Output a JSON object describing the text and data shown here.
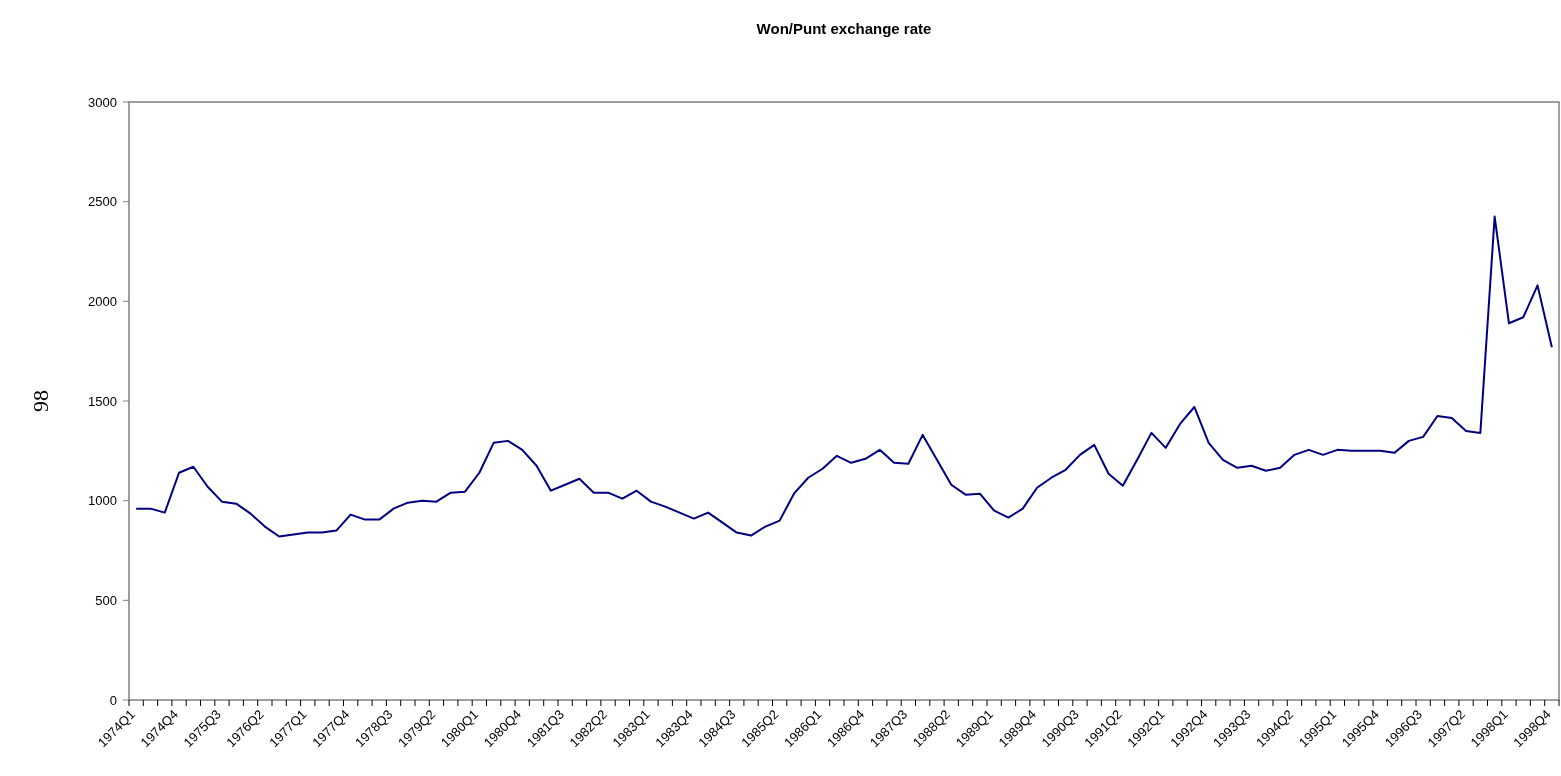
{
  "chart_data": {
    "type": "line",
    "title": "Won/Punt exchange rate",
    "ylabel": "98",
    "categories": [
      "1974Q1",
      null,
      null,
      "1974Q4",
      null,
      null,
      "1975Q3",
      null,
      null,
      "1976Q2",
      null,
      null,
      "1977Q1",
      null,
      null,
      "1977Q4",
      null,
      null,
      "1978Q3",
      null,
      null,
      "1979Q2",
      null,
      null,
      "1980Q1",
      null,
      null,
      "1980Q4",
      null,
      null,
      "1981Q3",
      null,
      null,
      "1982Q2",
      null,
      null,
      "1983Q1",
      null,
      null,
      "1983Q4",
      null,
      null,
      "1984Q3",
      null,
      null,
      "1985Q2",
      null,
      null,
      "1986Q1",
      null,
      null,
      "1986Q4",
      null,
      null,
      "1987Q3",
      null,
      null,
      "1988Q2",
      null,
      null,
      "1989Q1",
      null,
      null,
      "1989Q4",
      null,
      null,
      "1990Q3",
      null,
      null,
      "1991Q2",
      null,
      null,
      "1992Q1",
      null,
      null,
      "1992Q4",
      null,
      null,
      "1993Q3",
      null,
      null,
      "1994Q2",
      null,
      null,
      "1995Q1",
      null,
      null,
      "1995Q4",
      null,
      null,
      "1996Q3",
      null,
      null,
      "1997Q2",
      null,
      null,
      "1998Q1",
      null,
      null,
      "1998Q4"
    ],
    "series": [
      {
        "color": "#000080",
        "values": [
          960,
          960,
          940,
          1140,
          1170,
          1070,
          995,
          985,
          935,
          870,
          820,
          830,
          840,
          840,
          850,
          930,
          905,
          905,
          960,
          990,
          1000,
          995,
          1040,
          1045,
          1140,
          1290,
          1300,
          1255,
          1175,
          1050,
          1080,
          1110,
          1040,
          1040,
          1010,
          1050,
          995,
          970,
          940,
          910,
          940,
          890,
          840,
          825,
          870,
          900,
          1035,
          1115,
          1160,
          1225,
          1190,
          1210,
          1255,
          1190,
          1185,
          1330,
          1205,
          1080,
          1030,
          1035,
          950,
          915,
          960,
          1065,
          1115,
          1155,
          1230,
          1280,
          1135,
          1075,
          1205,
          1340,
          1265,
          1385,
          1470,
          1290,
          1205,
          1165,
          1175,
          1150,
          1165,
          1230,
          1255,
          1230,
          1255,
          1250,
          1250,
          1250,
          1240,
          1300,
          1320,
          1425,
          1415,
          1350,
          1340,
          2425,
          1890,
          1920,
          2080,
          1770
        ]
      }
    ],
    "ylim": [
      0,
      3000
    ],
    "yticks": [
      0,
      500,
      1000,
      1500,
      2000,
      2500,
      3000
    ]
  }
}
